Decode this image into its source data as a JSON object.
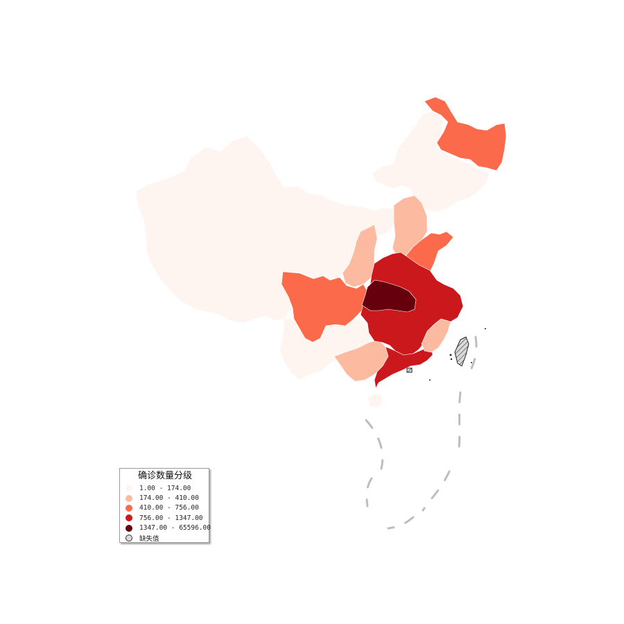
{
  "legend": {
    "title": "确诊数量分级",
    "items": [
      {
        "label": "1.00 - 174.00",
        "color": "#fff5f0"
      },
      {
        "label": "174.00 - 410.00",
        "color": "#fcbba1"
      },
      {
        "label": "410.00 - 756.00",
        "color": "#fb6a4a"
      },
      {
        "label": "756.00 - 1347.00",
        "color": "#cb181d"
      },
      {
        "label": "1347.00 - 65596.00",
        "color": "#67000d"
      },
      {
        "label": "缺失值",
        "color": "#d9d9d9",
        "missing": true
      }
    ]
  },
  "map": {
    "regions": [
      {
        "name": "northwest-block",
        "class": 0
      },
      {
        "name": "northeast-upper",
        "class": 0
      },
      {
        "name": "heilongjiang",
        "class": 2
      },
      {
        "name": "north-block",
        "class": 0
      },
      {
        "name": "shanxi-shaanxi",
        "class": 1
      },
      {
        "name": "shaanxi-west",
        "class": 1
      },
      {
        "name": "sichuan",
        "class": 2
      },
      {
        "name": "southwest-block",
        "class": 0
      },
      {
        "name": "guangxi",
        "class": 1
      },
      {
        "name": "shandong",
        "class": 2
      },
      {
        "name": "central-block",
        "class": 3
      },
      {
        "name": "hubei",
        "class": 4
      },
      {
        "name": "guangdong",
        "class": 3
      },
      {
        "name": "fujian",
        "class": 1
      },
      {
        "name": "hainan",
        "class": 0
      },
      {
        "name": "taiwan",
        "class": 5
      }
    ]
  }
}
